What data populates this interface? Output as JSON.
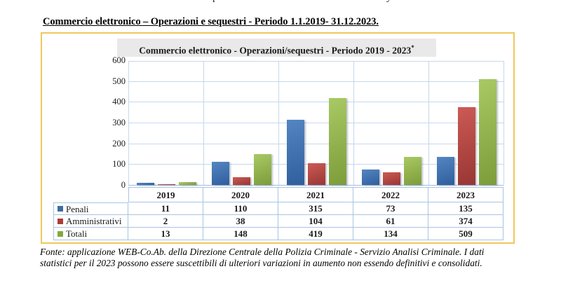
{
  "page": {
    "heading": "Commercio elettronico – Operazioni e sequestri - Periodo 1.1.2019- 31.12.2023.",
    "top_fragments": [
      {
        "glyph": "p",
        "x": 303
      },
      {
        "glyph": "y",
        "x": 551
      }
    ],
    "footer_line1": "Fonte: applicazione WEB-Co.Ab. della Direzione Centrale della Polizia Criminale - Servizio Analisi Criminale. I dati",
    "footer_line2": "statistici per il 2023 possono essere suscettibili di ulteriori variazioni in aumento non essendo definitivi e consolidati."
  },
  "chart_data": {
    "type": "bar",
    "title": "Commercio elettronico - Operazioni/sequestri - Periodo 2019 - 2023",
    "title_superscript": "*",
    "categories": [
      "2019",
      "2020",
      "2021",
      "2022",
      "2023"
    ],
    "series": [
      {
        "name": "Penali",
        "color": "#4F81BD",
        "color_light": "#5486C2",
        "color_dark": "#2F5E9C",
        "swatch": "#3C6DA5",
        "values": [
          11,
          110,
          315,
          73,
          135
        ]
      },
      {
        "name": "Amministrativi",
        "color": "#C0504D",
        "color_light": "#CC5A55",
        "color_dark": "#983633",
        "swatch": "#AE3B38",
        "values": [
          2,
          38,
          104,
          61,
          374
        ]
      },
      {
        "name": "Totali",
        "color": "#9BBB59",
        "color_light": "#A8C964",
        "color_dark": "#7D9C3A",
        "swatch": "#84A83E",
        "values": [
          13,
          148,
          419,
          134,
          509
        ]
      }
    ],
    "ylim": [
      0,
      600
    ],
    "ytick_step": 100,
    "grid": true,
    "legend_position": "table-left"
  },
  "colors": {
    "gold": "#F0C75E",
    "titlebg": "#E9E9E9",
    "grid": "#C7D8EC",
    "axis": "#9FB9DB",
    "tborder": "#A9C4E3"
  }
}
